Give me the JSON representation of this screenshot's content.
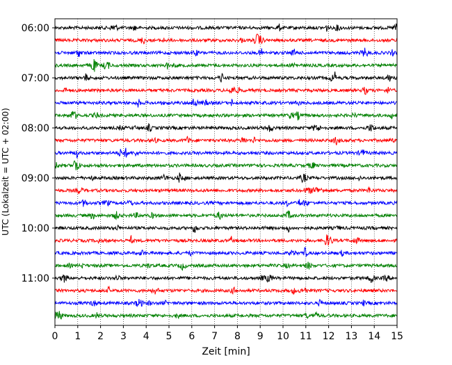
{
  "chart_data": {
    "type": "line",
    "title": "",
    "xlabel": "Zeit  [min]",
    "ylabel": "UTC (Lokalzeit = UTC + 02:00)",
    "xlim": [
      0,
      15
    ],
    "x_ticks": [
      "0",
      "1",
      "2",
      "3",
      "4",
      "5",
      "6",
      "7",
      "8",
      "9",
      "10",
      "11",
      "12",
      "13",
      "14",
      "15"
    ],
    "y_tick_labels": [
      "06:00",
      "07:00",
      "08:00",
      "09:00",
      "10:00",
      "11:00"
    ],
    "grid": "vertical dotted at each minute",
    "trace_colors": [
      "#000000",
      "#ff0000",
      "#0000ff",
      "#008000"
    ],
    "traces": [
      {
        "start": "06:00"
      },
      {
        "start": "06:15"
      },
      {
        "start": "06:30"
      },
      {
        "start": "06:45"
      },
      {
        "start": "07:00"
      },
      {
        "start": "07:15"
      },
      {
        "start": "07:30"
      },
      {
        "start": "07:45"
      },
      {
        "start": "08:00"
      },
      {
        "start": "08:15"
      },
      {
        "start": "08:30"
      },
      {
        "start": "08:45"
      },
      {
        "start": "09:00"
      },
      {
        "start": "09:15"
      },
      {
        "start": "09:30"
      },
      {
        "start": "09:45"
      },
      {
        "start": "10:00"
      },
      {
        "start": "10:15"
      },
      {
        "start": "10:30"
      },
      {
        "start": "10:45"
      },
      {
        "start": "11:00"
      },
      {
        "start": "11:15"
      },
      {
        "start": "11:30"
      },
      {
        "start": "11:45"
      }
    ]
  }
}
